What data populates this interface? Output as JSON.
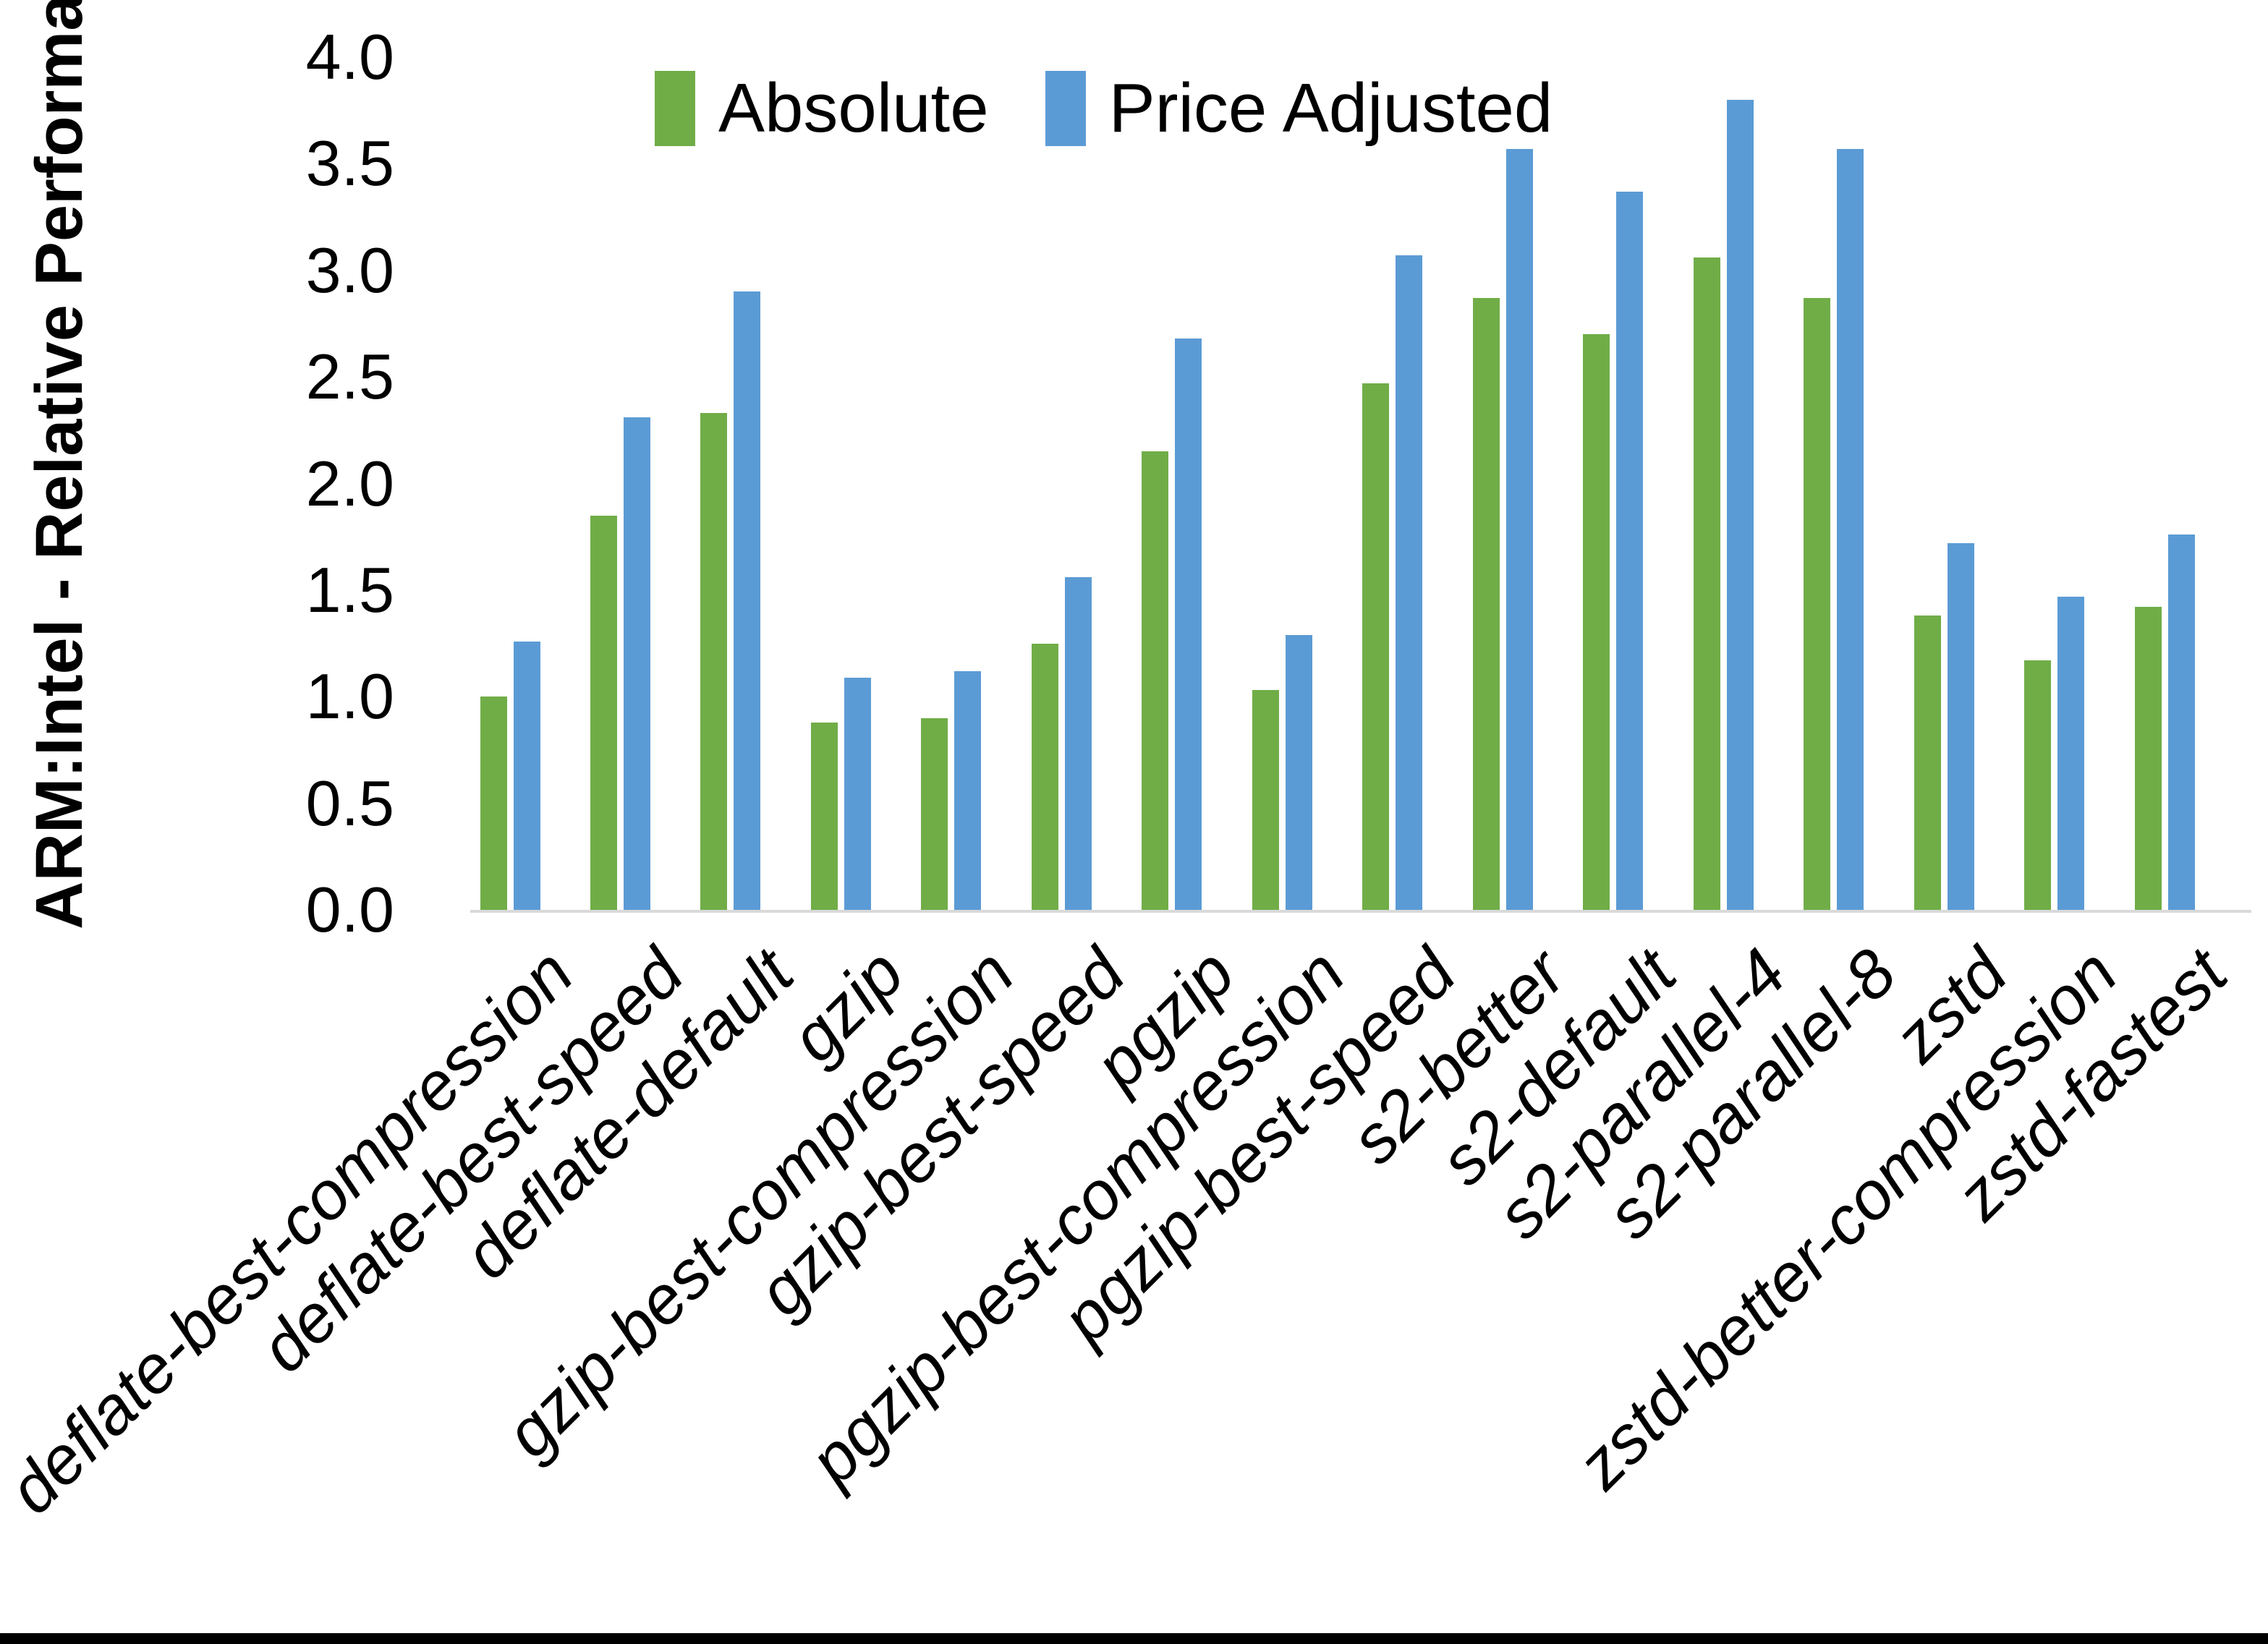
{
  "chart_data": {
    "type": "bar",
    "title": "",
    "ylabel": "ARM:Intel - Relative Performance",
    "xlabel": "",
    "ylim": [
      0.0,
      4.0
    ],
    "ytick_step": 0.5,
    "yticks": [
      "4.0",
      "3.5",
      "3.0",
      "2.5",
      "2.0",
      "1.5",
      "1.0",
      "0.5",
      "0.0"
    ],
    "grid": false,
    "legend_position": "top-center",
    "background_color": "#FFFFFF",
    "axis_line_color": "#D9D9D9",
    "text_color": "#000000",
    "categories": [
      "deflate-best-compression",
      "deflate-best-speed",
      "deflate-default",
      "gzip",
      "gzip-best-compression",
      "gzip-best-speed",
      "pgzip",
      "pgzip-best-compression",
      "pgzip-best-speed",
      "s2-better",
      "s2-default",
      "s2-parallel-4",
      "s2-parallel-8",
      "zstd",
      "zstd-better-compression",
      "zstd-fastest"
    ],
    "series": [
      {
        "name": "Absolute",
        "color": "#70AD47",
        "values": [
          1.0,
          1.85,
          2.33,
          0.88,
          0.9,
          1.25,
          2.15,
          1.03,
          2.47,
          2.87,
          2.7,
          3.06,
          2.87,
          1.38,
          1.17,
          1.42
        ]
      },
      {
        "name": "Price Adjusted",
        "color": "#5B9BD5",
        "values": [
          1.26,
          2.31,
          2.9,
          1.09,
          1.12,
          1.56,
          2.68,
          1.29,
          3.07,
          3.57,
          3.37,
          3.8,
          3.57,
          1.72,
          1.47,
          1.76
        ]
      }
    ]
  },
  "decor": {
    "bottom_border_color": "#000000"
  }
}
